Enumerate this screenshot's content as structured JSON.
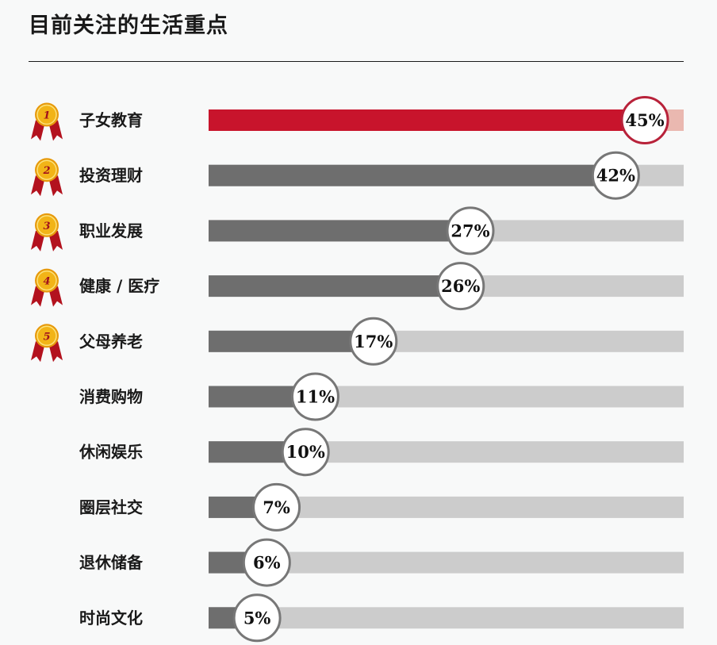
{
  "title": "目前关注的生活重点",
  "colors": {
    "highlight_bar": "#c8142c",
    "highlight_track": "#eab8b0",
    "bar": "#6e6e6e",
    "track": "#cccccc",
    "highlight_circle_stroke": "#b8223a",
    "circle_stroke": "#777777",
    "medal_gold": "#f2b417",
    "medal_ribbon": "#b3121e"
  },
  "chart_data": {
    "type": "bar",
    "orientation": "horizontal",
    "categories": [
      "子女教育",
      "投资理财",
      "职业发展",
      "健康 / 医疗",
      "父母养老",
      "消费购物",
      "休闲娱乐",
      "圈层社交",
      "退休储备",
      "时尚文化"
    ],
    "values": [
      45,
      42,
      27,
      26,
      17,
      11,
      10,
      7,
      6,
      5
    ],
    "value_labels": [
      "45%",
      "42%",
      "27%",
      "26%",
      "17%",
      "11%",
      "10%",
      "7%",
      "6%",
      "5%"
    ],
    "ranks": [
      "1",
      "2",
      "3",
      "4",
      "5"
    ],
    "xlim": [
      0,
      45
    ],
    "unit": "%"
  }
}
